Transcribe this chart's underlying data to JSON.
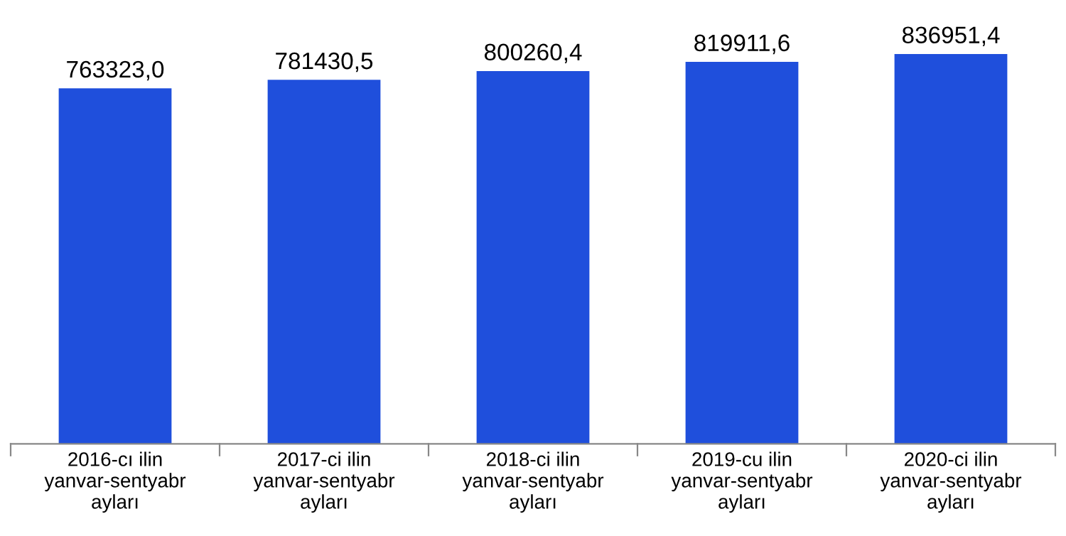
{
  "chart_data": {
    "type": "bar",
    "categories": [
      "2016-cı ilin\nyanvar-sentyabr\nayları",
      "2017-ci ilin\nyanvar-sentyabr\nayları",
      "2018-ci ilin\nyanvar-sentyabr\nayları",
      "2019-cu ilin\nyanvar-sentyabr\nayları",
      "2020-ci ilin\nyanvar-sentyabr\nayları"
    ],
    "values": [
      763323.0,
      781430.5,
      800260.4,
      819911.6,
      836951.4
    ],
    "value_labels": [
      "763323,0",
      "781430,5",
      "800260,4",
      "819911,6",
      "836951,4"
    ],
    "color": "#1f4fdc",
    "grid": false,
    "legend": false
  }
}
